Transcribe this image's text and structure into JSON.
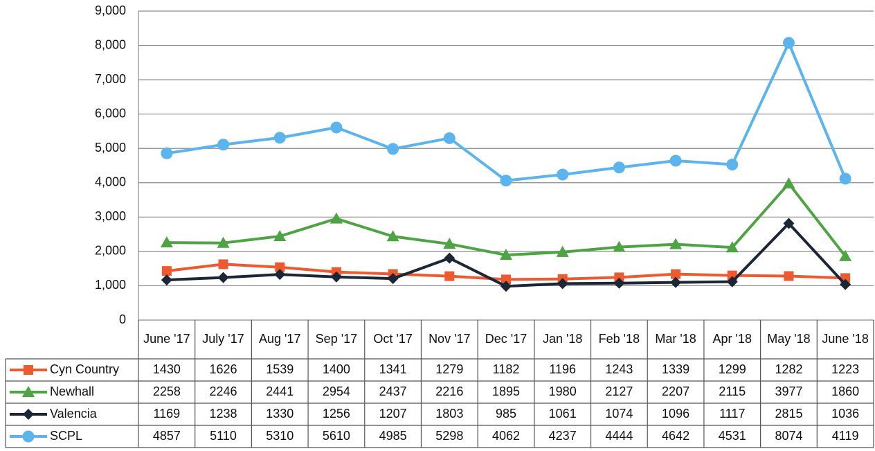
{
  "chart_data": {
    "type": "line",
    "categories": [
      "June '17",
      "July '17",
      "Aug '17",
      "Sep '17",
      "Oct '17",
      "Nov '17",
      "Dec '17",
      "Jan '18",
      "Feb '18",
      "Mar '18",
      "Apr '18",
      "May '18",
      "June '18"
    ],
    "series": [
      {
        "name": "Cyn Country",
        "color": "#ee5a30",
        "marker": "square",
        "values": [
          1430,
          1626,
          1539,
          1400,
          1341,
          1279,
          1182,
          1196,
          1243,
          1339,
          1299,
          1282,
          1223
        ]
      },
      {
        "name": "Newhall",
        "color": "#4ea443",
        "marker": "triangle",
        "values": [
          2258,
          2246,
          2441,
          2954,
          2437,
          2216,
          1895,
          1980,
          2127,
          2207,
          2115,
          3977,
          1860
        ]
      },
      {
        "name": "Valencia",
        "color": "#1b2636",
        "marker": "diamond",
        "values": [
          1169,
          1238,
          1330,
          1256,
          1207,
          1803,
          985,
          1061,
          1074,
          1096,
          1117,
          2815,
          1036
        ]
      },
      {
        "name": "SCPL",
        "color": "#5bb5ec",
        "marker": "circle",
        "values": [
          4857,
          5110,
          5310,
          5610,
          4985,
          5298,
          4062,
          4237,
          4444,
          4642,
          4531,
          8074,
          4119
        ]
      }
    ],
    "ylim": [
      0,
      9000
    ],
    "yticks": [
      0,
      {
        "value": 1000,
        "label": "1,000"
      },
      {
        "value": 2000,
        "label": "2,000"
      },
      {
        "value": 3000,
        "label": "3,000"
      },
      {
        "value": 4000,
        "label": "4,000"
      },
      {
        "value": 5000,
        "label": "5,000"
      },
      {
        "value": 6000,
        "label": "6,000"
      },
      {
        "value": 7000,
        "label": "7,000"
      },
      {
        "value": 8000,
        "label": "8,000"
      },
      {
        "value": 9000,
        "label": "9,000"
      }
    ],
    "grid": true
  }
}
